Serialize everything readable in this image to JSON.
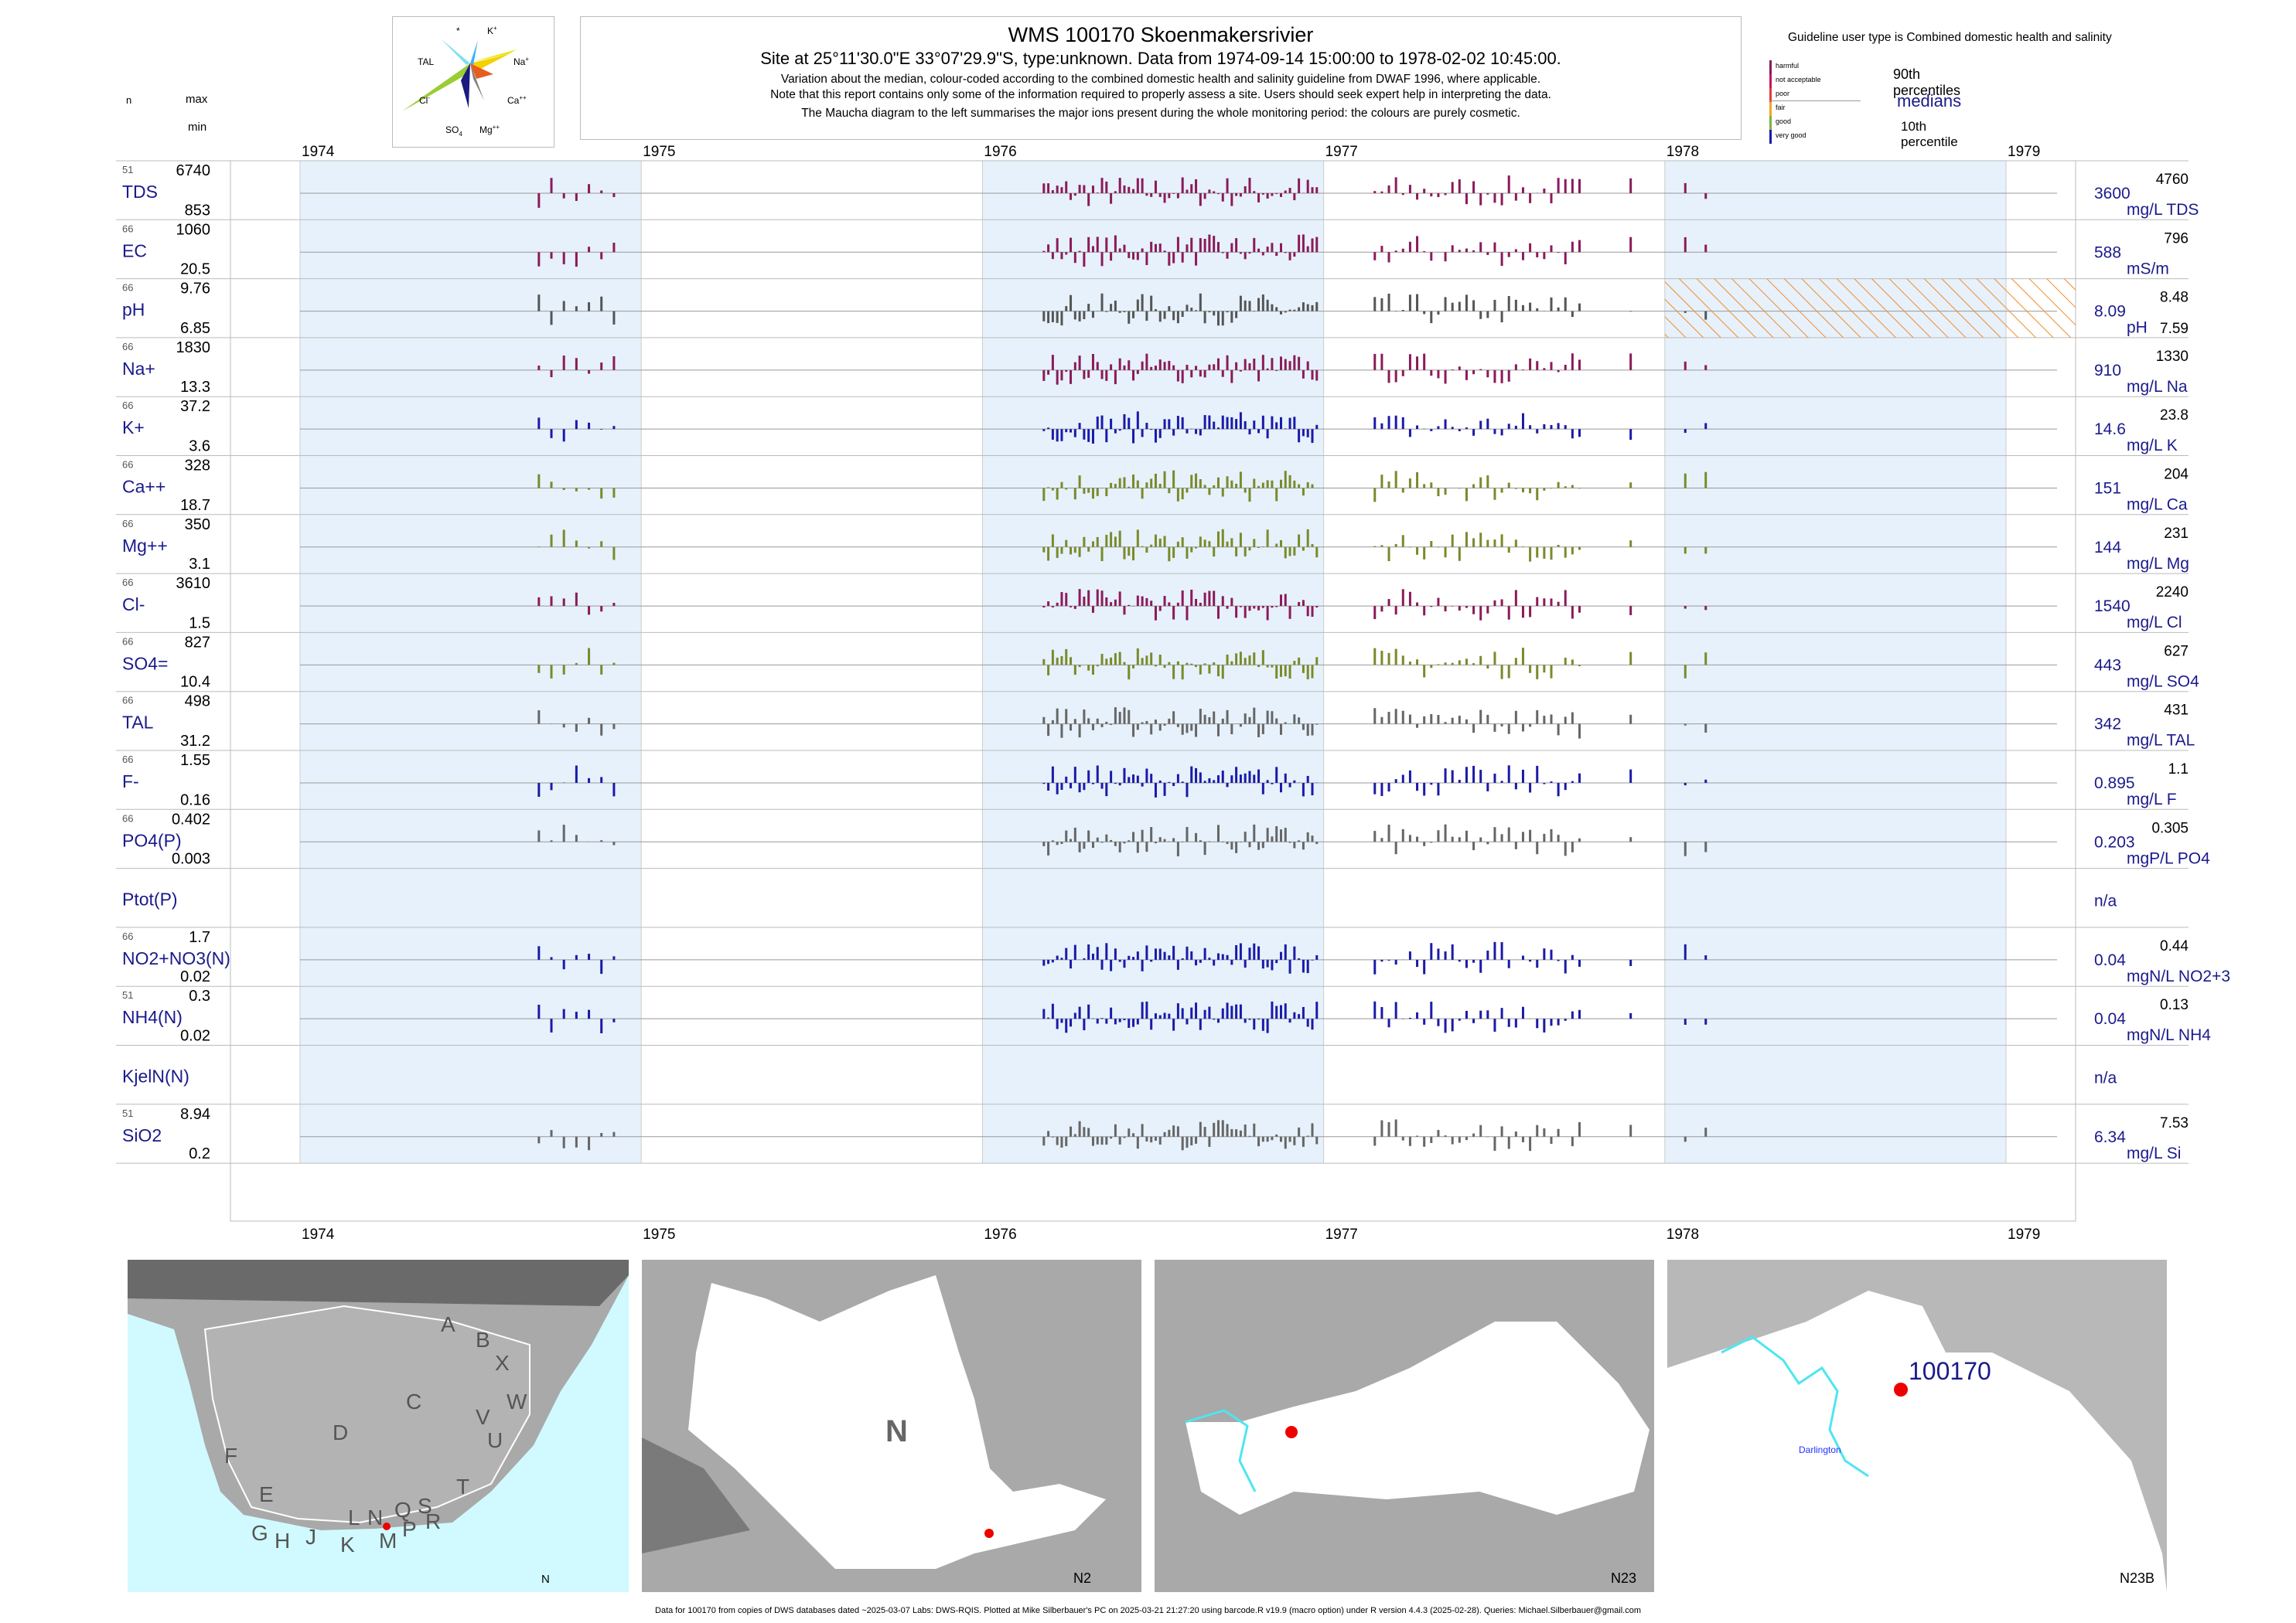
{
  "header": {
    "title": "WMS 100170  Skoenmakersrivier",
    "subtitle": "Site at 25°11'30.0\"E 33°07'29.9\"S, type:unknown.  Data from 1974-09-14 15:00:00 to 1978-02-02 10:45:00.",
    "note1": "Variation about the median,  colour-coded according to the combined domestic health and salinity guideline from DWAF 1996, where applicable.",
    "note2": "Note that this report contains only some of the information required to properly assess a site. Users should seek expert help in interpreting the data.",
    "note3": "The Maucha diagram to the left summarises the major ions present during the whole monitoring period: the colours are purely cosmetic."
  },
  "column_headers": {
    "n": "n",
    "max": "max",
    "min": "min"
  },
  "guideline": {
    "label": "Guideline user type is Combined domestic health and salinity",
    "levels": [
      {
        "name": "harmful",
        "color": "#8b1a5a"
      },
      {
        "name": "not acceptable",
        "color": "#c2185b"
      },
      {
        "name": "poor",
        "color": "#e53935"
      },
      {
        "name": "fair",
        "color": "#f5a623"
      },
      {
        "name": "good",
        "color": "#7cb342"
      },
      {
        "name": "very good",
        "color": "#1a1aa8"
      }
    ],
    "p90_label": "90th percentiles",
    "median_label": "medians",
    "p10_label": "10th percentile"
  },
  "maucha": {
    "labels": [
      "*",
      "K+",
      "TAL",
      "Na+",
      "Cl-",
      "Ca++",
      "SO4=",
      "Mg++"
    ]
  },
  "chart_data": {
    "type": "bar",
    "x_axis": {
      "years": [
        "1974",
        "1975",
        "1976",
        "1977",
        "1978",
        "1979"
      ],
      "range": [
        "1974-01-01",
        "1979-01-01"
      ]
    },
    "shaded_years": [
      "1974",
      "1976",
      "1978"
    ],
    "series": [
      {
        "key": "TDS",
        "n": "51",
        "max": "6740",
        "min": "853",
        "median": "3600",
        "unit": "mg/L TDS",
        "p90": "4760",
        "p10": "",
        "color": "#8b1a5a"
      },
      {
        "key": "EC",
        "n": "66",
        "max": "1060",
        "min": "20.5",
        "median": "588",
        "unit": "mS/m",
        "p90": "796",
        "p10": "",
        "color": "#8b1a5a"
      },
      {
        "key": "pH",
        "n": "66",
        "max": "9.76",
        "min": "6.85",
        "median": "8.09",
        "unit": "pH",
        "p90": "8.48",
        "p10": "7.59",
        "color": "#555555"
      },
      {
        "key": "Na+",
        "n": "66",
        "max": "1830",
        "min": "13.3",
        "median": "910",
        "unit": "mg/L Na",
        "p90": "1330",
        "p10": "",
        "color": "#8b1a5a"
      },
      {
        "key": "K+",
        "n": "66",
        "max": "37.2",
        "min": "3.6",
        "median": "14.6",
        "unit": "mg/L K",
        "p90": "23.8",
        "p10": "",
        "color": "#1a1aa8"
      },
      {
        "key": "Ca++",
        "n": "66",
        "max": "328",
        "min": "18.7",
        "median": "151",
        "unit": "mg/L Ca",
        "p90": "204",
        "p10": "",
        "color": "#7a8a2a"
      },
      {
        "key": "Mg++",
        "n": "66",
        "max": "350",
        "min": "3.1",
        "median": "144",
        "unit": "mg/L Mg",
        "p90": "231",
        "p10": "",
        "color": "#7a8a2a"
      },
      {
        "key": "Cl-",
        "n": "66",
        "max": "3610",
        "min": "1.5",
        "median": "1540",
        "unit": "mg/L Cl",
        "p90": "2240",
        "p10": "",
        "color": "#8b1a5a"
      },
      {
        "key": "SO4=",
        "n": "66",
        "max": "827",
        "min": "10.4",
        "median": "443",
        "unit": "mg/L SO4",
        "p90": "627",
        "p10": "",
        "color": "#7a8a2a"
      },
      {
        "key": "TAL",
        "n": "66",
        "max": "498",
        "min": "31.2",
        "median": "342",
        "unit": "mg/L TAL",
        "p90": "431",
        "p10": "",
        "color": "#666666"
      },
      {
        "key": "F-",
        "n": "66",
        "max": "1.55",
        "min": "0.16",
        "median": "0.895",
        "unit": "mg/L F",
        "p90": "1.1",
        "p10": "",
        "color": "#1a1aa8"
      },
      {
        "key": "PO4(P)",
        "n": "66",
        "max": "0.402",
        "min": "0.003",
        "median": "0.203",
        "unit": "mgP/L PO4",
        "p90": "0.305",
        "p10": "",
        "color": "#666666"
      },
      {
        "key": "Ptot(P)",
        "n": "",
        "max": "",
        "min": "",
        "median": "n/a",
        "unit": "",
        "p90": "",
        "p10": "",
        "color": "#666666"
      },
      {
        "key": "NO2+NO3(N)",
        "n": "66",
        "max": "1.7",
        "min": "0.02",
        "median": "0.04",
        "unit": "mgN/L NO2+3",
        "p90": "0.44",
        "p10": "",
        "color": "#1a1aa8"
      },
      {
        "key": "NH4(N)",
        "n": "51",
        "max": "0.3",
        "min": "0.02",
        "median": "0.04",
        "unit": "mgN/L NH4",
        "p90": "0.13",
        "p10": "",
        "color": "#1a1aa8"
      },
      {
        "key": "KjelN(N)",
        "n": "",
        "max": "",
        "min": "",
        "median": "n/a",
        "unit": "",
        "p90": "",
        "p10": "",
        "color": "#666666"
      },
      {
        "key": "SiO2",
        "n": "51",
        "max": "8.94",
        "min": "0.2",
        "median": "6.34",
        "unit": "mg/L Si",
        "p90": "7.53",
        "p10": "",
        "color": "#666666"
      }
    ]
  },
  "maps": [
    {
      "labels": [
        "A",
        "B",
        "X",
        "W",
        "C",
        "V",
        "U",
        "D",
        "T",
        "F",
        "E",
        "L",
        "N",
        "Q",
        "S",
        "R",
        "G",
        "H",
        "J",
        "K",
        "M",
        "P"
      ],
      "corner": "N"
    },
    {
      "labels": [
        "N"
      ],
      "corner": "N2"
    },
    {
      "labels": [],
      "corner": "N23"
    },
    {
      "labels": [
        "100170",
        "Darlington"
      ],
      "corner": "N23B"
    }
  ],
  "footer": "Data for 100170 from copies of DWS databases dated ~2025-03-07 Labs: DWS-RQIS. Plotted at Mike Silberbauer's PC on 2025-03-21 21:27:20 using barcode.R v19.9 (macro option) under R version 4.4.3 (2025-02-28). Queries: Michael.Silberbauer@gmail.com"
}
